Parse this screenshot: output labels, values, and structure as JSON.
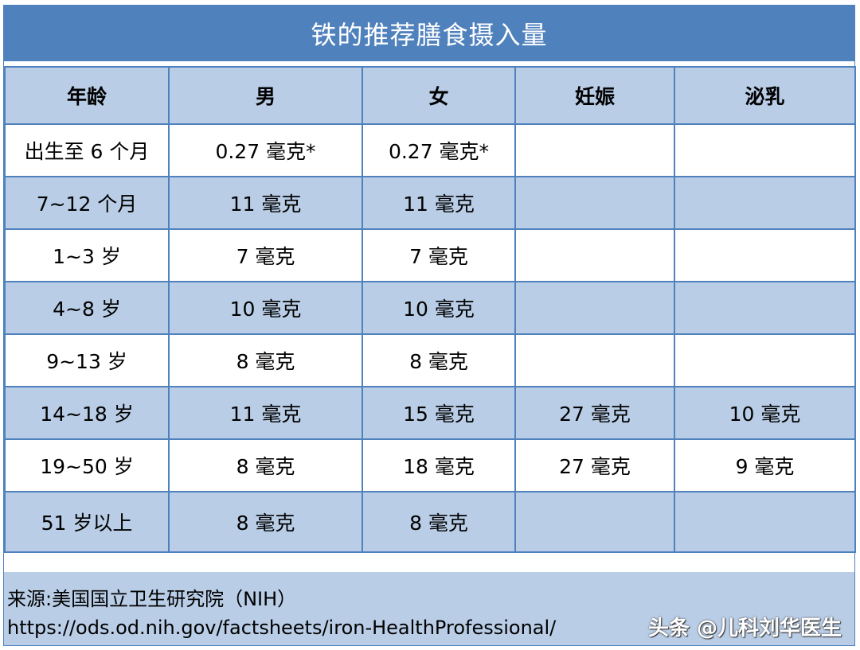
{
  "title": "铁的推荐膳食摄入量",
  "table": {
    "headers": [
      "年龄",
      "男",
      "女",
      "妊娠",
      "泌乳"
    ],
    "rows": [
      [
        "出生至 6 个月",
        "0.27 毫克*",
        "0.27 毫克*",
        "",
        ""
      ],
      [
        "7~12 个月",
        "11 毫克",
        "11 毫克",
        "",
        ""
      ],
      [
        "1~3 岁",
        "7 毫克",
        "7 毫克",
        "",
        ""
      ],
      [
        "4~8 岁",
        "10 毫克",
        "10 毫克",
        "",
        ""
      ],
      [
        "9~13 岁",
        "8 毫克",
        "8 毫克",
        "",
        ""
      ],
      [
        "14~18 岁",
        "11 毫克",
        "15 毫克",
        "27 毫克",
        "10 毫克"
      ],
      [
        "19~50 岁",
        "8 毫克",
        "18 毫克",
        "27 毫克",
        "9 毫克"
      ],
      [
        "51 岁以上",
        "8 毫克",
        "8 毫克",
        "",
        ""
      ]
    ]
  },
  "footer": {
    "source": "来源:美国国立卫生研究院（NIH）",
    "url": "https://ods.od.nih.gov/factsheets/iron-HealthProfessional/",
    "watermark": "头条 @儿科刘华医生"
  },
  "colors": {
    "title_bg": "#4f81bd",
    "band": "#b9cde6",
    "border": "#4f81bd"
  }
}
